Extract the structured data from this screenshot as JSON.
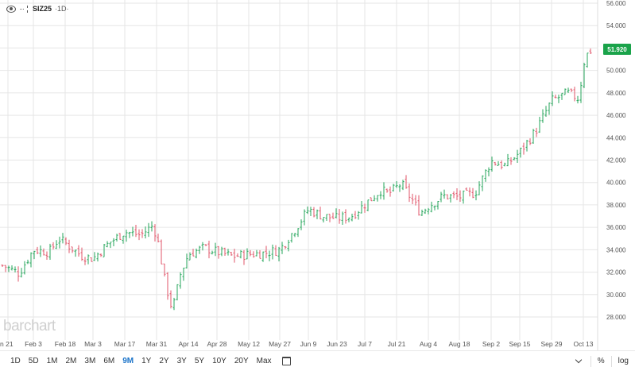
{
  "header": {
    "symbol": "SIZ25",
    "period": "·1D·",
    "icons": [
      "eye-icon",
      "more-icon",
      "color-swatch-icon"
    ]
  },
  "logo_text": "barchart",
  "last_price": "51.920",
  "colors": {
    "up": "#26a65b",
    "down": "#e0566a",
    "badge": "#1aa34a",
    "active": "#1a73c9"
  },
  "toolbar": {
    "timeframes": [
      "1D",
      "5D",
      "1M",
      "2M",
      "3M",
      "6M",
      "9M",
      "1Y",
      "2Y",
      "3Y",
      "5Y",
      "10Y",
      "20Y",
      "Max"
    ],
    "active": "9M",
    "percent_label": "%",
    "log_label": "log"
  },
  "chart_data": {
    "type": "ohlc",
    "title": "",
    "xlabel": "",
    "ylabel": "",
    "ylim": [
      26,
      56
    ],
    "y_ticks": [
      "28.000",
      "30.000",
      "32.000",
      "34.000",
      "36.000",
      "38.000",
      "40.000",
      "42.000",
      "44.000",
      "46.000",
      "48.000",
      "50.000",
      "52.000",
      "54.000",
      "56.000"
    ],
    "x_ticks": [
      "n 21",
      "Feb 3",
      "Feb 18",
      "Mar 3",
      "Mar 17",
      "Mar 31",
      "Apr 14",
      "Apr 28",
      "May 12",
      "May 27",
      "Jun 9",
      "Jun 23",
      "Jul 7",
      "Jul 21",
      "Aug 4",
      "Aug 18",
      "Sep 2",
      "Sep 15",
      "Sep 29",
      "Oct 13"
    ],
    "grid": true,
    "approx_close_path": [
      [
        "Jan 21",
        32.6
      ],
      [
        "Jan 27",
        31.9
      ],
      [
        "Feb 3",
        34.0
      ],
      [
        "Feb 10",
        33.8
      ],
      [
        "Feb 14",
        35.0
      ],
      [
        "Feb 18",
        34.6
      ],
      [
        "Feb 25",
        33.5
      ],
      [
        "Mar 3",
        33.2
      ],
      [
        "Mar 10",
        34.6
      ],
      [
        "Mar 17",
        35.6
      ],
      [
        "Mar 24",
        35.3
      ],
      [
        "Mar 28",
        36.1
      ],
      [
        "Mar 31",
        35.4
      ],
      [
        "Apr 2",
        31.0
      ],
      [
        "Apr 4",
        28.6
      ],
      [
        "Apr 9",
        31.8
      ],
      [
        "Apr 14",
        33.6
      ],
      [
        "Apr 21",
        34.2
      ],
      [
        "Apr 28",
        33.8
      ],
      [
        "May 5",
        33.4
      ],
      [
        "May 12",
        33.6
      ],
      [
        "May 19",
        33.7
      ],
      [
        "May 27",
        34.0
      ],
      [
        "Jun 2",
        35.7
      ],
      [
        "Jun 9",
        37.6
      ],
      [
        "Jun 16",
        37.0
      ],
      [
        "Jun 23",
        36.8
      ],
      [
        "Jun 30",
        37.0
      ],
      [
        "Jul 7",
        39.3
      ],
      [
        "Jul 14",
        39.0
      ],
      [
        "Jul 21",
        39.9
      ],
      [
        "Jul 28",
        37.3
      ],
      [
        "Aug 4",
        37.9
      ],
      [
        "Aug 11",
        38.8
      ],
      [
        "Aug 18",
        38.7
      ],
      [
        "Aug 25",
        39.1
      ],
      [
        "Sep 2",
        41.9
      ],
      [
        "Sep 8",
        41.5
      ],
      [
        "Sep 15",
        42.7
      ],
      [
        "Sep 22",
        44.6
      ],
      [
        "Sep 29",
        47.3
      ],
      [
        "Oct 6",
        48.0
      ],
      [
        "Oct 10",
        47.5
      ],
      [
        "Oct 13",
        51.2
      ],
      [
        "Oct 17",
        51.92
      ]
    ]
  }
}
